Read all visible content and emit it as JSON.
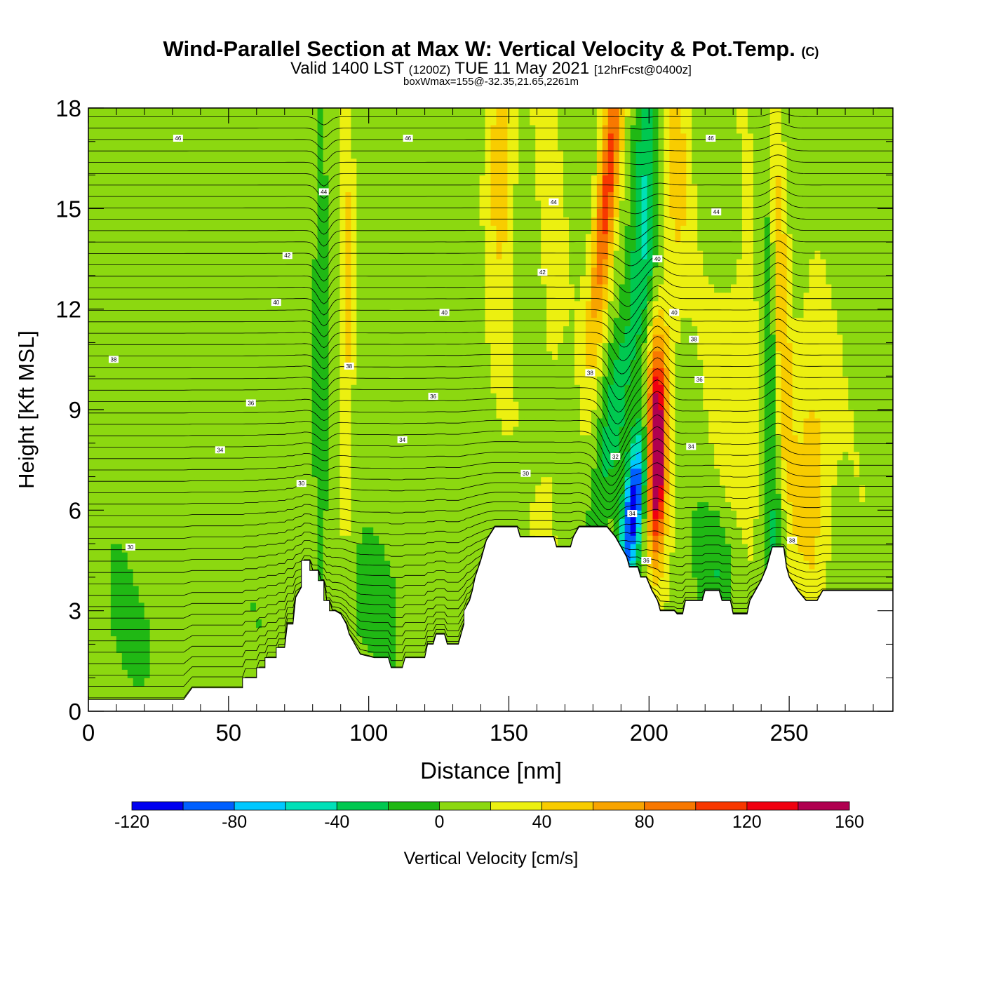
{
  "title": {
    "main": "Wind-Parallel Section at Max W: Vertical Velocity & Pot.Temp.",
    "copyright": "(C)",
    "valid_prefix": "Valid 1400 LST",
    "valid_utc": "(1200Z)",
    "valid_date": "TUE 11 May 2021",
    "forecast": "[12hrFcst@0400z]",
    "box_info": "boxWmax=155@-32.35,21.65,2261m"
  },
  "chart_data": {
    "type": "heatmap",
    "xlabel": "Distance [nm]",
    "ylabel": "Height [Kft MSL]",
    "xlim": [
      0,
      287
    ],
    "ylim": [
      0,
      18
    ],
    "x_ticks": [
      "0",
      "50",
      "100",
      "150",
      "200",
      "250"
    ],
    "x_tick_values": [
      0,
      50,
      100,
      150,
      200,
      250
    ],
    "y_ticks": [
      "0",
      "3",
      "6",
      "9",
      "12",
      "15",
      "18"
    ],
    "y_tick_values": [
      0,
      3,
      6,
      9,
      12,
      15,
      18
    ],
    "colorbar": {
      "label": "Vertical Velocity [cm/s]",
      "bounds": [
        -120,
        -100,
        -80,
        -60,
        -40,
        -20,
        0,
        20,
        40,
        60,
        80,
        100,
        120,
        140,
        160
      ],
      "tick_labels": [
        "-120",
        "-80",
        "-40",
        "0",
        "40",
        "80",
        "120",
        "160"
      ],
      "tick_values": [
        -120,
        -80,
        -40,
        0,
        40,
        80,
        120,
        160
      ],
      "colors": [
        "#0000f0",
        "#0060ff",
        "#00c8ff",
        "#00e0b8",
        "#00c850",
        "#20b814",
        "#8cd810",
        "#ecf010",
        "#f8cc00",
        "#f8a400",
        "#f87800",
        "#f83800",
        "#f00010",
        "#b00050"
      ]
    },
    "terrain": [
      [
        0,
        0.35
      ],
      [
        4,
        0.35
      ],
      [
        9,
        0.35
      ],
      [
        14,
        0.35
      ],
      [
        19,
        0.35
      ],
      [
        24,
        0.35
      ],
      [
        29,
        0.35
      ],
      [
        34,
        0.35
      ],
      [
        37,
        0.7
      ],
      [
        40,
        0.7
      ],
      [
        45,
        0.7
      ],
      [
        50,
        0.7
      ],
      [
        55,
        0.7
      ],
      [
        55,
        1.0
      ],
      [
        60,
        1.0
      ],
      [
        60,
        1.3
      ],
      [
        63,
        1.3
      ],
      [
        63,
        1.6
      ],
      [
        67,
        1.6
      ],
      [
        67,
        1.9
      ],
      [
        70,
        1.9
      ],
      [
        71,
        2.6
      ],
      [
        73,
        2.6
      ],
      [
        74,
        3.4
      ],
      [
        76,
        3.7
      ],
      [
        76,
        4.5
      ],
      [
        79,
        4.5
      ],
      [
        79,
        4.2
      ],
      [
        82,
        4.2
      ],
      [
        82,
        3.9
      ],
      [
        84,
        3.9
      ],
      [
        84,
        3.3
      ],
      [
        86,
        3.3
      ],
      [
        86,
        3.0
      ],
      [
        88,
        3.0
      ],
      [
        90,
        2.9
      ],
      [
        92,
        2.6
      ],
      [
        93,
        2.3
      ],
      [
        95,
        2.0
      ],
      [
        97,
        1.7
      ],
      [
        102,
        1.6
      ],
      [
        107,
        1.6
      ],
      [
        108,
        1.3
      ],
      [
        112,
        1.3
      ],
      [
        113,
        1.6
      ],
      [
        120,
        1.6
      ],
      [
        121,
        2.0
      ],
      [
        123,
        2.0
      ],
      [
        124,
        2.3
      ],
      [
        127,
        2.3
      ],
      [
        128,
        2.0
      ],
      [
        132,
        2.0
      ],
      [
        133,
        2.3
      ],
      [
        134,
        2.6
      ],
      [
        134,
        3.0
      ],
      [
        136,
        3.3
      ],
      [
        137,
        3.6
      ],
      [
        138,
        4.0
      ],
      [
        140,
        4.5
      ],
      [
        142,
        5.1
      ],
      [
        145,
        5.5
      ],
      [
        153,
        5.5
      ],
      [
        154,
        5.2
      ],
      [
        160,
        5.2
      ],
      [
        166,
        5.2
      ],
      [
        167,
        4.9
      ],
      [
        172,
        4.9
      ],
      [
        173,
        5.2
      ],
      [
        175,
        5.5
      ],
      [
        185,
        5.5
      ],
      [
        188,
        5.2
      ],
      [
        190,
        4.9
      ],
      [
        192,
        4.6
      ],
      [
        193,
        4.3
      ],
      [
        196,
        4.3
      ],
      [
        197,
        4.0
      ],
      [
        199,
        4.0
      ],
      [
        201,
        3.6
      ],
      [
        203,
        3.3
      ],
      [
        204,
        3.0
      ],
      [
        207,
        3.0
      ],
      [
        209,
        3.0
      ],
      [
        210,
        2.9
      ],
      [
        212,
        2.9
      ],
      [
        213,
        3.3
      ],
      [
        219,
        3.3
      ],
      [
        220,
        3.6
      ],
      [
        225,
        3.6
      ],
      [
        226,
        3.3
      ],
      [
        229,
        3.3
      ],
      [
        230,
        2.9
      ],
      [
        235,
        2.9
      ],
      [
        236,
        3.3
      ],
      [
        238,
        3.6
      ],
      [
        240,
        3.9
      ],
      [
        242,
        4.3
      ],
      [
        244,
        4.9
      ],
      [
        248,
        4.9
      ],
      [
        249,
        4.3
      ],
      [
        250,
        4.0
      ],
      [
        253,
        3.6
      ],
      [
        256,
        3.3
      ],
      [
        260,
        3.3
      ],
      [
        262,
        3.6
      ],
      [
        270,
        3.6
      ],
      [
        287,
        3.6
      ]
    ]
  },
  "isentrope_labels": [
    {
      "text": "46",
      "x": 32,
      "y": 17.1
    },
    {
      "text": "46",
      "x": 114,
      "y": 17.1
    },
    {
      "text": "46",
      "x": 222,
      "y": 17.1
    },
    {
      "text": "44",
      "x": 84,
      "y": 15.5
    },
    {
      "text": "44",
      "x": 166,
      "y": 15.2
    },
    {
      "text": "44",
      "x": 224,
      "y": 14.9
    },
    {
      "text": "42",
      "x": 71,
      "y": 13.6
    },
    {
      "text": "42",
      "x": 162,
      "y": 13.1
    },
    {
      "text": "40",
      "x": 203,
      "y": 13.5
    },
    {
      "text": "40",
      "x": 67,
      "y": 12.2
    },
    {
      "text": "40",
      "x": 127,
      "y": 11.9
    },
    {
      "text": "40",
      "x": 209,
      "y": 11.9
    },
    {
      "text": "38",
      "x": 216,
      "y": 11.1
    },
    {
      "text": "38",
      "x": 9,
      "y": 10.5
    },
    {
      "text": "38",
      "x": 93,
      "y": 10.3
    },
    {
      "text": "38",
      "x": 179,
      "y": 10.1
    },
    {
      "text": "36",
      "x": 218,
      "y": 9.9
    },
    {
      "text": "36",
      "x": 58,
      "y": 9.2
    },
    {
      "text": "36",
      "x": 123,
      "y": 9.4
    },
    {
      "text": "34",
      "x": 47,
      "y": 7.8
    },
    {
      "text": "34",
      "x": 112,
      "y": 8.1
    },
    {
      "text": "34",
      "x": 215,
      "y": 7.9
    },
    {
      "text": "32",
      "x": 188,
      "y": 7.6
    },
    {
      "text": "30",
      "x": 156,
      "y": 7.1
    },
    {
      "text": "30",
      "x": 76,
      "y": 6.8
    },
    {
      "text": "30",
      "x": 15,
      "y": 4.9
    },
    {
      "text": "34",
      "x": 194,
      "y": 5.9
    },
    {
      "text": "36",
      "x": 199,
      "y": 4.5
    },
    {
      "text": "38",
      "x": 251,
      "y": 5.1
    }
  ]
}
